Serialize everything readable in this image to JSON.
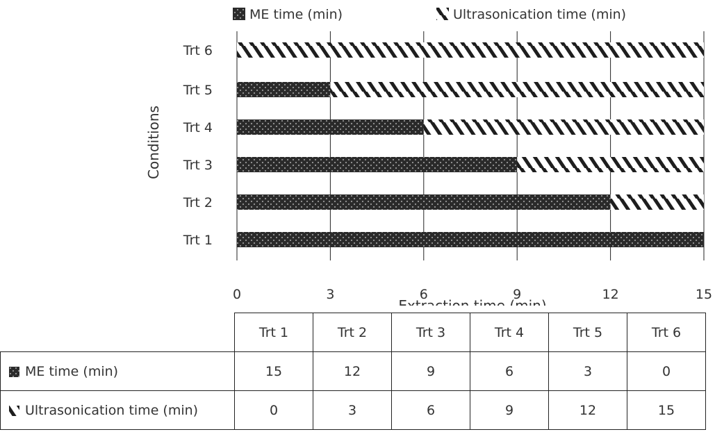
{
  "chart_data": {
    "type": "bar",
    "orientation": "horizontal",
    "stacked": true,
    "categories": [
      "Trt 1",
      "Trt 2",
      "Trt 3",
      "Trt 4",
      "Trt 5",
      "Trt 6"
    ],
    "series": [
      {
        "name": "ME time (min)",
        "values": [
          15,
          12,
          9,
          6,
          3,
          0
        ],
        "pattern": "dotted-dark"
      },
      {
        "name": "Ultrasonication time (min)",
        "values": [
          0,
          3,
          6,
          9,
          12,
          15
        ],
        "pattern": "diagonal-stripes"
      }
    ],
    "xlabel": "Extraction time (min)",
    "ylabel": "Conditions",
    "xlim": [
      0,
      15
    ],
    "xticks": [
      0,
      3,
      6,
      9,
      12,
      15
    ],
    "grid": "vertical",
    "legend": "top"
  },
  "table": {
    "headers": [
      "Trt 1",
      "Trt 2",
      "Trt 3",
      "Trt 4",
      "Trt 5",
      "Trt 6"
    ],
    "rows": [
      {
        "label": "ME time (min)",
        "icon": "dotted-dark-swatch",
        "values": [
          "15",
          "12",
          "9",
          "6",
          "3",
          "0"
        ]
      },
      {
        "label": "Ultrasonication time (min)",
        "icon": "diagonal-stripe-swatch",
        "values": [
          "0",
          "3",
          "6",
          "9",
          "12",
          "15"
        ]
      }
    ]
  },
  "colors": {
    "bar_dark": "#2a2a2a",
    "dots": "#9a9a9a",
    "stripe_dark": "#1e1e1e",
    "stripe_light": "#ffffff",
    "grid": "#222222"
  }
}
